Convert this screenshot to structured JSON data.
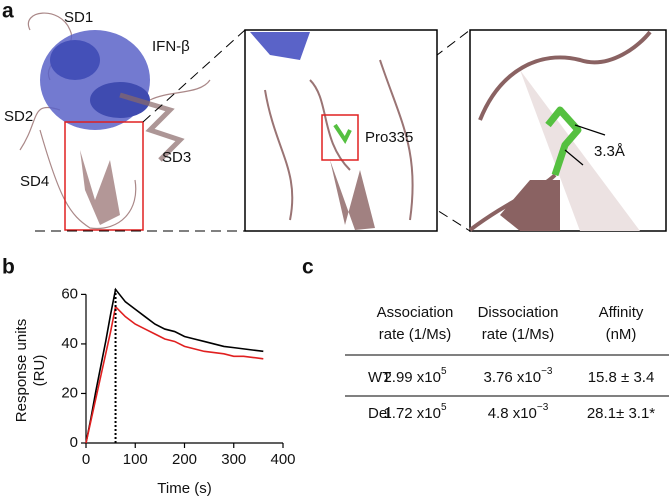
{
  "panel_labels": [
    "a",
    "b",
    "c"
  ],
  "structure": {
    "labels": [
      "SD1",
      "IFN-β",
      "SD2",
      "SD3",
      "SD4"
    ],
    "zoom_label": "Pro335",
    "distance_label": "3.3Å"
  },
  "chart_data": {
    "type": "line",
    "x": [
      0,
      10,
      20,
      30,
      40,
      50,
      60,
      80,
      100,
      120,
      140,
      160,
      180,
      200,
      220,
      240,
      260,
      280,
      300,
      320,
      340,
      360
    ],
    "series": [
      {
        "color": "#000000",
        "values": [
          0,
          10,
          21,
          31,
          41,
          52,
          62,
          57,
          54,
          51,
          48,
          46,
          45,
          43,
          42,
          41,
          40,
          39,
          38.5,
          38,
          37.5,
          37
        ]
      },
      {
        "color": "#e02020",
        "values": [
          0,
          9,
          18,
          27,
          36,
          45,
          55,
          51,
          48,
          46,
          44,
          42,
          41,
          39,
          38,
          37,
          36.5,
          36,
          35,
          35,
          34.5,
          34
        ]
      }
    ],
    "vline": 60,
    "xlim": [
      0,
      400
    ],
    "xticks": [
      0,
      100,
      200,
      300,
      400
    ],
    "ylim": [
      0,
      65
    ],
    "yticks": [
      0,
      20,
      40,
      60
    ],
    "xlabel": "Time (s)",
    "ylabel": [
      "Response units",
      "(RU)"
    ]
  },
  "table": {
    "headers": [
      [
        "Association",
        "rate (1/Ms)"
      ],
      [
        "Dissociation",
        "rate (1/Ms)"
      ],
      [
        "Affinity",
        "(nM)"
      ]
    ],
    "rows": [
      [
        "WT",
        {
          "mantissa": "2.99 x10",
          "exp": "5"
        },
        {
          "mantissa": "3.76 x10",
          "exp": "−3"
        },
        "15.8 ± 3.4"
      ],
      [
        "Del",
        {
          "mantissa": "1.72 x10",
          "exp": "5"
        },
        {
          "mantissa": "4.8 x10",
          "exp": "−3"
        },
        "28.1± 3.1*"
      ]
    ]
  }
}
